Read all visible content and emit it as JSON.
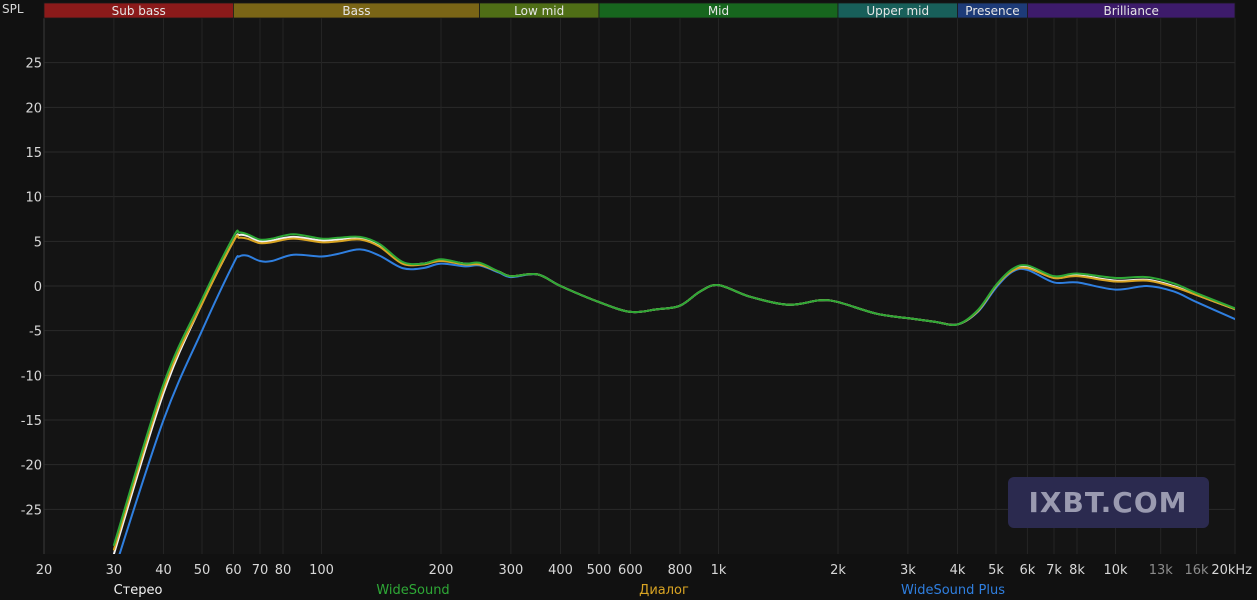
{
  "chart_data": {
    "type": "line",
    "y_unit_label": "SPL",
    "x_scale": "log",
    "xlim": [
      20,
      20000
    ],
    "ylim": [
      -30,
      30
    ],
    "grid": true,
    "y_ticks": [
      25,
      20,
      15,
      10,
      5,
      0,
      -5,
      -10,
      -15,
      -20,
      -25
    ],
    "x_ticks": [
      {
        "value": 20,
        "label": "20"
      },
      {
        "value": 30,
        "label": "30"
      },
      {
        "value": 40,
        "label": "40"
      },
      {
        "value": 50,
        "label": "50"
      },
      {
        "value": 60,
        "label": "60"
      },
      {
        "value": 70,
        "label": "70"
      },
      {
        "value": 80,
        "label": "80"
      },
      {
        "value": 100,
        "label": "100"
      },
      {
        "value": 200,
        "label": "200"
      },
      {
        "value": 300,
        "label": "300"
      },
      {
        "value": 400,
        "label": "400"
      },
      {
        "value": 500,
        "label": "500"
      },
      {
        "value": 600,
        "label": "600"
      },
      {
        "value": 800,
        "label": "800"
      },
      {
        "value": 1000,
        "label": "1k"
      },
      {
        "value": 2000,
        "label": "2k"
      },
      {
        "value": 3000,
        "label": "3k"
      },
      {
        "value": 4000,
        "label": "4k"
      },
      {
        "value": 5000,
        "label": "5k"
      },
      {
        "value": 6000,
        "label": "6k"
      },
      {
        "value": 7000,
        "label": "7k"
      },
      {
        "value": 8000,
        "label": "8k"
      },
      {
        "value": 10000,
        "label": "10k"
      },
      {
        "value": 13000,
        "label": "13k",
        "dim": true
      },
      {
        "value": 16000,
        "label": "16k",
        "dim": true
      },
      {
        "value": 20000,
        "label": "20kHz"
      }
    ],
    "bands": [
      {
        "name": "Sub bass",
        "from": 20,
        "to": 60,
        "color": "#8b1a1a"
      },
      {
        "name": "Bass",
        "from": 60,
        "to": 250,
        "color": "#7a6516"
      },
      {
        "name": "Low mid",
        "from": 250,
        "to": 500,
        "color": "#4f6e16"
      },
      {
        "name": "Mid",
        "from": 500,
        "to": 2000,
        "color": "#17661e"
      },
      {
        "name": "Upper mid",
        "from": 2000,
        "to": 4000,
        "color": "#185f5a"
      },
      {
        "name": "Presence",
        "from": 4000,
        "to": 6000,
        "color": "#1d3b78"
      },
      {
        "name": "Brilliance",
        "from": 6000,
        "to": 20000,
        "color": "#3d1b6b"
      }
    ],
    "series": [
      {
        "name": "Стерео",
        "color": "#f2f2f2",
        "points": [
          [
            30,
            -30
          ],
          [
            40,
            -12
          ],
          [
            50,
            -2
          ],
          [
            60,
            5
          ],
          [
            62,
            5.7
          ],
          [
            65,
            5.6
          ],
          [
            70,
            5.0
          ],
          [
            75,
            5.1
          ],
          [
            85,
            5.5
          ],
          [
            100,
            5.1
          ],
          [
            110,
            5.2
          ],
          [
            125,
            5.4
          ],
          [
            140,
            4.5
          ],
          [
            160,
            2.6
          ],
          [
            180,
            2.5
          ],
          [
            200,
            2.9
          ],
          [
            230,
            2.5
          ],
          [
            250,
            2.5
          ],
          [
            280,
            1.6
          ],
          [
            300,
            1.1
          ],
          [
            350,
            1.3
          ],
          [
            400,
            0.0
          ],
          [
            500,
            -1.8
          ],
          [
            600,
            -2.9
          ],
          [
            700,
            -2.6
          ],
          [
            800,
            -2.2
          ],
          [
            900,
            -0.6
          ],
          [
            1000,
            0.1
          ],
          [
            1200,
            -1.2
          ],
          [
            1500,
            -2.1
          ],
          [
            1800,
            -1.6
          ],
          [
            2000,
            -1.8
          ],
          [
            2500,
            -3.1
          ],
          [
            3000,
            -3.6
          ],
          [
            3500,
            -4.0
          ],
          [
            4000,
            -4.3
          ],
          [
            4500,
            -2.8
          ],
          [
            5000,
            0
          ],
          [
            5500,
            1.8
          ],
          [
            6000,
            2.1
          ],
          [
            7000,
            0.9
          ],
          [
            8000,
            1.2
          ],
          [
            10000,
            0.6
          ],
          [
            12000,
            0.7
          ],
          [
            14000,
            0.0
          ],
          [
            16000,
            -1.0
          ],
          [
            20000,
            -2.6
          ]
        ]
      },
      {
        "name": "WideSound",
        "color": "#2ea836",
        "points": [
          [
            30,
            -29
          ],
          [
            40,
            -11
          ],
          [
            50,
            -1.5
          ],
          [
            60,
            5.5
          ],
          [
            62,
            6.0
          ],
          [
            65,
            5.8
          ],
          [
            70,
            5.2
          ],
          [
            75,
            5.3
          ],
          [
            85,
            5.8
          ],
          [
            100,
            5.3
          ],
          [
            110,
            5.4
          ],
          [
            125,
            5.5
          ],
          [
            140,
            4.7
          ],
          [
            160,
            2.7
          ],
          [
            180,
            2.5
          ],
          [
            200,
            3.0
          ],
          [
            230,
            2.5
          ],
          [
            250,
            2.6
          ],
          [
            280,
            1.6
          ],
          [
            300,
            1.1
          ],
          [
            350,
            1.3
          ],
          [
            400,
            0.0
          ],
          [
            500,
            -1.8
          ],
          [
            600,
            -2.9
          ],
          [
            700,
            -2.6
          ],
          [
            800,
            -2.2
          ],
          [
            900,
            -0.6
          ],
          [
            1000,
            0.1
          ],
          [
            1200,
            -1.2
          ],
          [
            1500,
            -2.1
          ],
          [
            1800,
            -1.6
          ],
          [
            2000,
            -1.8
          ],
          [
            2500,
            -3.1
          ],
          [
            3000,
            -3.6
          ],
          [
            3500,
            -4.0
          ],
          [
            4000,
            -4.3
          ],
          [
            4500,
            -2.7
          ],
          [
            5000,
            0.1
          ],
          [
            5500,
            1.9
          ],
          [
            6000,
            2.3
          ],
          [
            7000,
            1.1
          ],
          [
            8000,
            1.4
          ],
          [
            10000,
            0.9
          ],
          [
            12000,
            1.0
          ],
          [
            14000,
            0.3
          ],
          [
            16000,
            -0.8
          ],
          [
            20000,
            -2.5
          ]
        ]
      },
      {
        "name": "Диалог",
        "color": "#d9a423",
        "points": [
          [
            30,
            -29.5
          ],
          [
            40,
            -11.5
          ],
          [
            50,
            -2
          ],
          [
            60,
            5.0
          ],
          [
            62,
            5.4
          ],
          [
            65,
            5.3
          ],
          [
            70,
            4.8
          ],
          [
            75,
            4.9
          ],
          [
            85,
            5.3
          ],
          [
            100,
            4.9
          ],
          [
            110,
            5.0
          ],
          [
            125,
            5.2
          ],
          [
            140,
            4.4
          ],
          [
            160,
            2.5
          ],
          [
            180,
            2.4
          ],
          [
            200,
            2.8
          ],
          [
            230,
            2.4
          ],
          [
            250,
            2.4
          ],
          [
            280,
            1.6
          ],
          [
            300,
            1.1
          ],
          [
            350,
            1.3
          ],
          [
            400,
            0.0
          ],
          [
            500,
            -1.8
          ],
          [
            600,
            -2.9
          ],
          [
            700,
            -2.6
          ],
          [
            800,
            -2.2
          ],
          [
            900,
            -0.6
          ],
          [
            1000,
            0.1
          ],
          [
            1200,
            -1.2
          ],
          [
            1500,
            -2.1
          ],
          [
            1800,
            -1.6
          ],
          [
            2000,
            -1.8
          ],
          [
            2500,
            -3.1
          ],
          [
            3000,
            -3.6
          ],
          [
            3500,
            -4.0
          ],
          [
            4000,
            -4.3
          ],
          [
            4500,
            -2.8
          ],
          [
            5000,
            0
          ],
          [
            5500,
            1.7
          ],
          [
            6000,
            2.0
          ],
          [
            7000,
            0.9
          ],
          [
            8000,
            1.1
          ],
          [
            10000,
            0.5
          ],
          [
            12000,
            0.6
          ],
          [
            14000,
            -0.1
          ],
          [
            16000,
            -1.0
          ],
          [
            20000,
            -2.6
          ]
        ]
      },
      {
        "name": "WideSound Plus",
        "color": "#2f7fe0",
        "points": [
          [
            30,
            -32
          ],
          [
            40,
            -15
          ],
          [
            50,
            -5
          ],
          [
            60,
            2.5
          ],
          [
            62,
            3.3
          ],
          [
            65,
            3.4
          ],
          [
            70,
            2.8
          ],
          [
            75,
            2.8
          ],
          [
            85,
            3.5
          ],
          [
            100,
            3.3
          ],
          [
            110,
            3.6
          ],
          [
            125,
            4.1
          ],
          [
            140,
            3.4
          ],
          [
            160,
            2.0
          ],
          [
            180,
            2.0
          ],
          [
            200,
            2.5
          ],
          [
            230,
            2.2
          ],
          [
            250,
            2.3
          ],
          [
            280,
            1.5
          ],
          [
            300,
            1.0
          ],
          [
            350,
            1.3
          ],
          [
            400,
            0.0
          ],
          [
            500,
            -1.8
          ],
          [
            600,
            -2.9
          ],
          [
            700,
            -2.6
          ],
          [
            800,
            -2.2
          ],
          [
            900,
            -0.6
          ],
          [
            1000,
            0.1
          ],
          [
            1200,
            -1.2
          ],
          [
            1500,
            -2.1
          ],
          [
            1800,
            -1.6
          ],
          [
            2000,
            -1.8
          ],
          [
            2500,
            -3.1
          ],
          [
            3000,
            -3.6
          ],
          [
            3500,
            -4.0
          ],
          [
            4000,
            -4.3
          ],
          [
            4500,
            -2.9
          ],
          [
            5000,
            -0.2
          ],
          [
            5500,
            1.6
          ],
          [
            6000,
            1.8
          ],
          [
            7000,
            0.4
          ],
          [
            8000,
            0.4
          ],
          [
            10000,
            -0.4
          ],
          [
            12000,
            0.0
          ],
          [
            14000,
            -0.6
          ],
          [
            16000,
            -1.8
          ],
          [
            20000,
            -3.7
          ]
        ]
      }
    ],
    "legend": {
      "placement": "bottom"
    }
  },
  "watermark": {
    "text": "IXBT.COM",
    "color": "#2b2a4f"
  }
}
